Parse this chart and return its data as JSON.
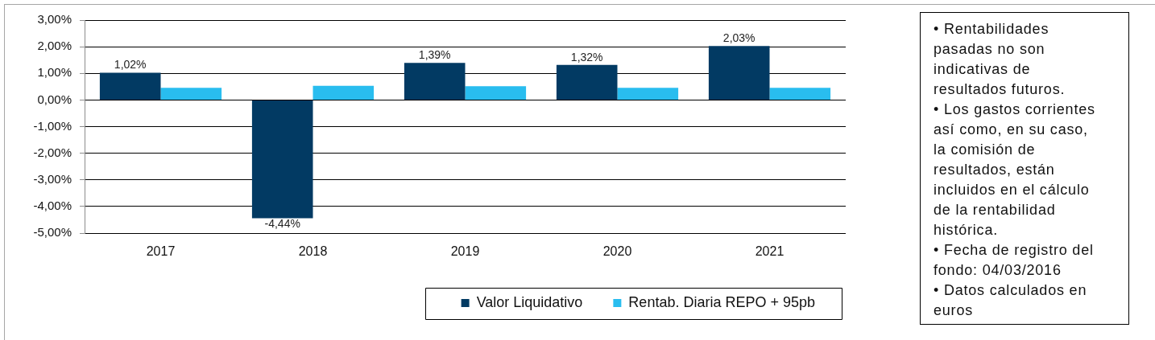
{
  "chart_data": {
    "type": "bar",
    "categories": [
      "2017",
      "2018",
      "2019",
      "2020",
      "2021"
    ],
    "series": [
      {
        "name": "Valor Liquidativo",
        "color": "#023a63",
        "values": [
          1.02,
          -4.44,
          1.39,
          1.32,
          2.03
        ],
        "value_labels": [
          "1,02%",
          "-4,44%",
          "1,39%",
          "1,32%",
          "2,03%"
        ]
      },
      {
        "name": "Rentab. Diaria REPO + 95pb",
        "color": "#29bdef",
        "values": [
          0.46,
          0.53,
          0.52,
          0.46,
          0.46
        ]
      }
    ],
    "ylim": [
      -5,
      3
    ],
    "yticks": [
      {
        "value": -5,
        "label": "-5,00%"
      },
      {
        "value": -4,
        "label": "-4,00%"
      },
      {
        "value": -3,
        "label": "-3,00%"
      },
      {
        "value": -2,
        "label": "-2,00%"
      },
      {
        "value": -1,
        "label": "-1,00%"
      },
      {
        "value": 0,
        "label": "0,00%"
      },
      {
        "value": 1,
        "label": "1,00%"
      },
      {
        "value": 2,
        "label": "2,00%"
      },
      {
        "value": 3,
        "label": "3,00%"
      }
    ],
    "grid": "y",
    "legend": "bottom right",
    "annotations": [
      "• Rentabilidades pasadas no son indicativas de resultados futuros.",
      "• Los gastos corrientes así como, en su caso, la comisión de resultados, están incluidos en el cálculo de la rentabilidad histórica.",
      "• Fecha de registro del fondo: 04/03/2016",
      "• Datos calculados en euros"
    ]
  }
}
